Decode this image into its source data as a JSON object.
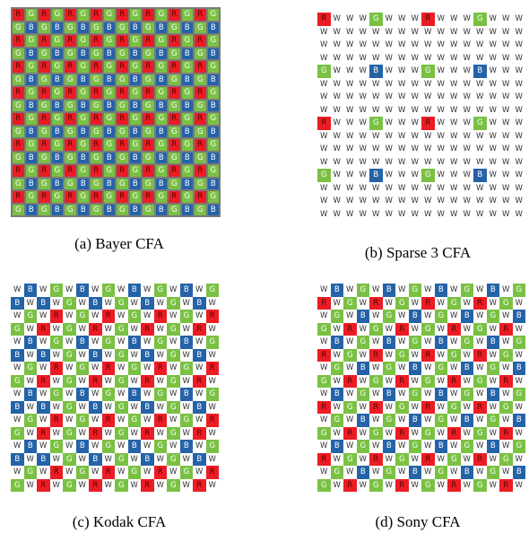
{
  "colors": {
    "R": "#ec1c24",
    "G": "#7ac143",
    "B": "#2563a8",
    "W": "#ffffff",
    "grid_line": "#7a7a7a"
  },
  "panels": [
    {
      "caption": "(a) Bayer CFA",
      "gridlines": true,
      "rows": [
        "RGRGRGRGRGRGRGRG",
        "GBGBGBGBGBGBGBGB",
        "RGRGRGRGRGRGRGRG",
        "GBGBGBGBGBGBGBGB",
        "RGRGRGRGRGRGRGRG",
        "GBGBGBGBGBGBGBGB",
        "RGRGRGRGRGRGRGRG",
        "GBGBGBGBGBGBGBGB",
        "RGRGRGRGRGRGRGRG",
        "GBGBGBGBGBGBGBGB",
        "RGRGRGRGRGRGRGRG",
        "GBGBGBGBGBGBGBGB",
        "RGRGRGRGRGRGRGRG",
        "GBGBGBGBGBGBGBGB",
        "RGRGRGRGRGRGRGRG",
        "GBGBGBGBGBGBGBGB"
      ]
    },
    {
      "caption": "(b) Sparse 3 CFA",
      "gridlines": false,
      "rows": [
        "RWWWGWWWRWWWGWWW",
        "WWWWWWWWWWWWWWWW",
        "WWWWWWWWWWWWWWWW",
        "WWWWWWWWWWWWWWWW",
        "GWWWBWWWGWWWBWWW",
        "WWWWWWWWWWWWWWWW",
        "WWWWWWWWWWWWWWWW",
        "WWWWWWWWWWWWWWWW",
        "RWWWGWWWRWWWGWWW",
        "WWWWWWWWWWWWWWWW",
        "WWWWWWWWWWWWWWWW",
        "WWWWWWWWWWWWWWWW",
        "GWWWBWWWGWWWBWWW",
        "WWWWWWWWWWWWWWWW",
        "WWWWWWWWWWWWWWWW",
        "WWWWWWWWWWWWWWWW"
      ]
    },
    {
      "caption": "(c) Kodak CFA",
      "gridlines": false,
      "rows": [
        "WBWGWBWGWBWGWBWG",
        "BWBWGWBWGWBWGWBW",
        "WGWRWGWRWGWRWGWR",
        "GWRWGWRWGWRWGWRW",
        "WBWGWBWGWBWGWBWG",
        "BWBWGWBWGWBWGWBW",
        "WGWRWGWRWGWRWGWR",
        "GWRWGWRWGWRWGWRW",
        "WBWGWBWGWBWGWBWG",
        "BWBWGWBWGWBWGWBW",
        "WGWRWGWRWGWRWGWR",
        "GWRWGWRWGWRWGWRW",
        "WBWGWBWGWBWGWBWG",
        "BWBWGWBWGWBWGWBW",
        "WGWRWGWRWGWRWGWR",
        "GWRWGWRWGWRWGWRW"
      ]
    },
    {
      "caption": "(d) Sony CFA",
      "gridlines": false,
      "rows": [
        "WBWGWBWGWBWGWBWG",
        "RWGWRWGWRWGWRWGW",
        "WGWBWGWBWGWBWGWB",
        "GWRWGWRWGWRWGWRW",
        "WBWGWBWGWBWGWBWG",
        "RWGWRWGWRWGWRWGW",
        "WGWBWGWBWGWBWGWB",
        "GWRWGWRWGWRWGWRW",
        "WBWGWBWGWBWGWBWG",
        "RWGWRWGWRWGWRWGW",
        "WGWBWGWBWGWBWGWB",
        "GWRWGWRWGWRWGWRW",
        "WBWGWBWGWBWGWBWG",
        "RWGWRWGWRWGWRWGW",
        "WGWBWGWBWGWBWGWB",
        "GWRWGWRWGWRWGWRW"
      ]
    }
  ]
}
